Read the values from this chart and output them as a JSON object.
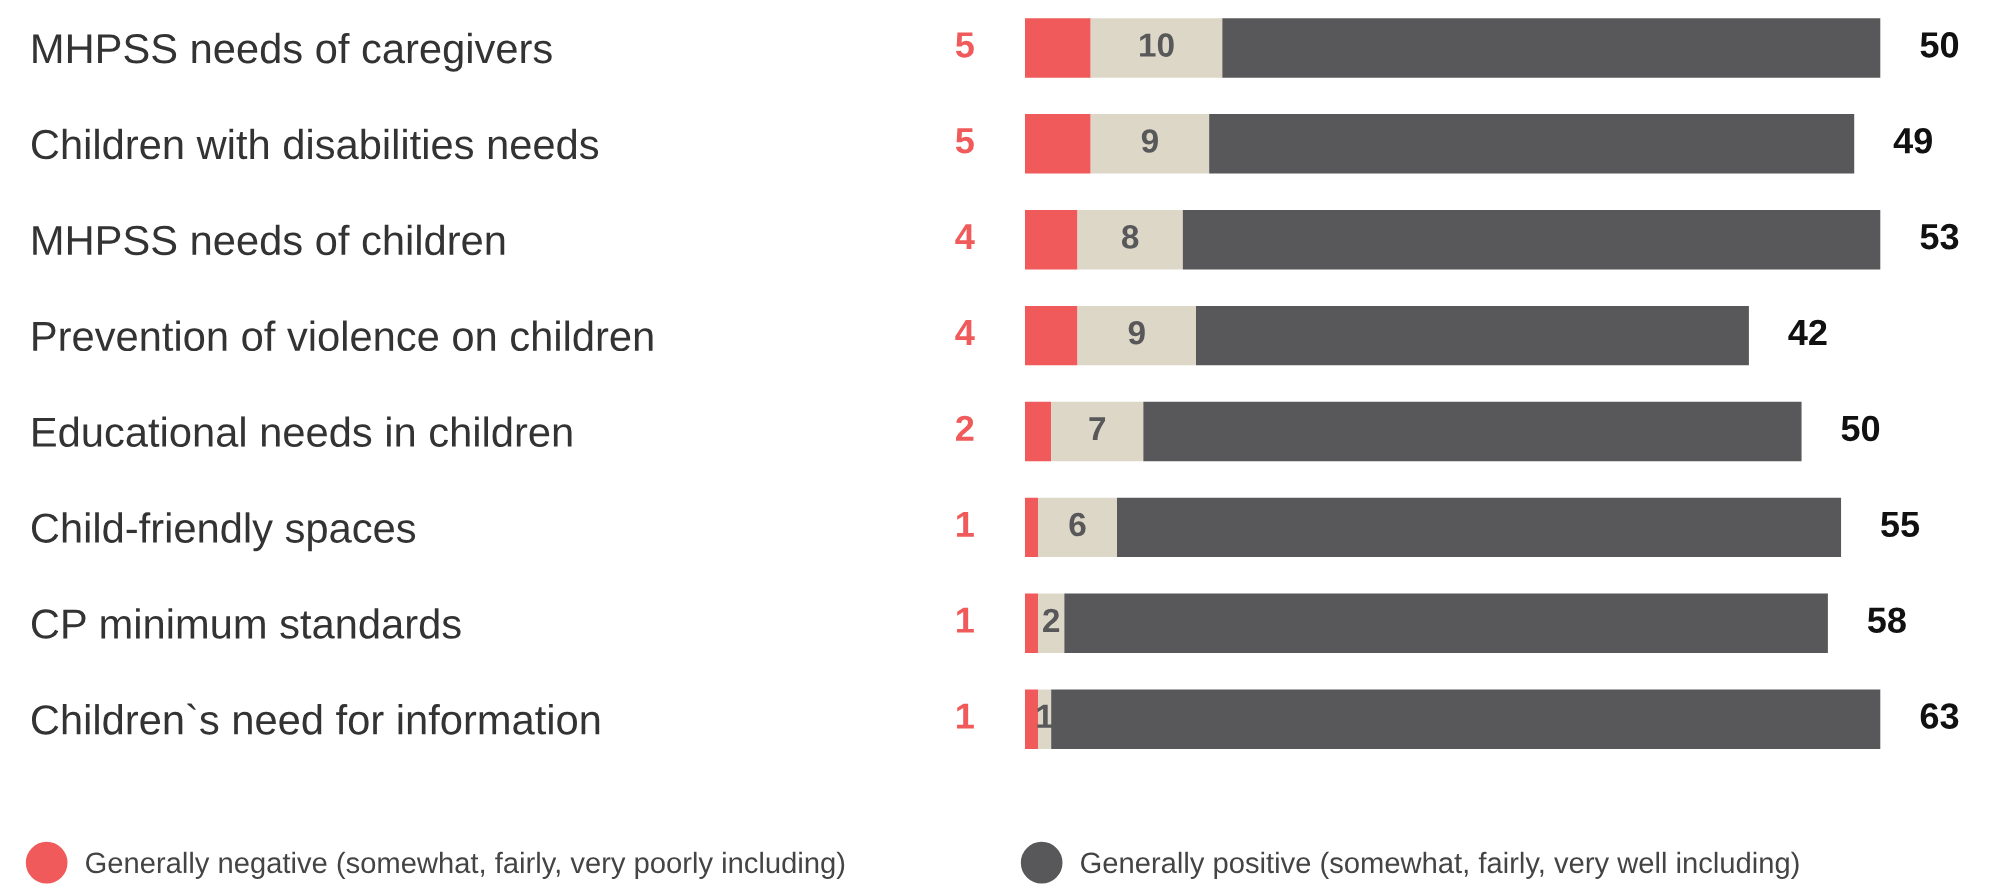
{
  "chart_data": {
    "type": "bar",
    "orientation": "horizontal",
    "stacked": true,
    "data_labels": true,
    "grid": false,
    "legend": "bottom",
    "categories": [
      "MHPSS needs of caregivers",
      "Children with disabilities needs",
      "MHPSS needs of children",
      "Prevention of violence on children",
      "Educational needs in children",
      "Child-friendly spaces",
      "CP minimum standards",
      "Children`s need for information"
    ],
    "series": [
      {
        "name": "Generally negative (somewhat, fairly, very poorly including)",
        "color": "#f05a5a",
        "values": [
          5,
          5,
          4,
          4,
          2,
          1,
          1,
          1
        ]
      },
      {
        "color": "#dcd7c7",
        "values": [
          10,
          9,
          8,
          9,
          7,
          6,
          2,
          1
        ]
      },
      {
        "name": "Generally positive (somewhat, fairly, very well including)",
        "color": "#58585a",
        "values": [
          50,
          49,
          53,
          42,
          50,
          55,
          58,
          63
        ]
      }
    ]
  }
}
